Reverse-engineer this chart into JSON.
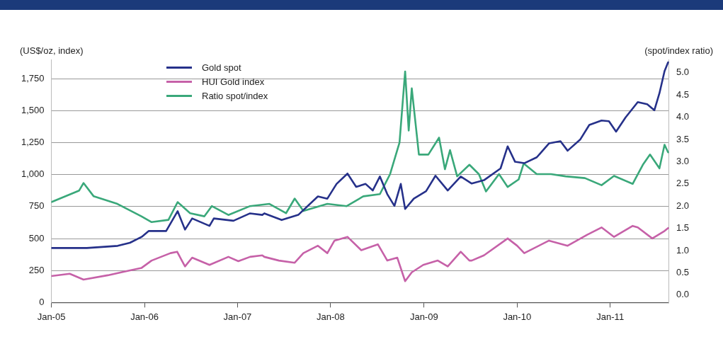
{
  "chart_data": {
    "type": "line",
    "ylabel": "(US$/oz, index)",
    "y2label": "(spot/index ratio)",
    "xlim": [
      "2005-01-01",
      "2011-08-20"
    ],
    "xticks": [
      {
        "value": "2005-01-01",
        "label": "Jan-05"
      },
      {
        "value": "2006-01-01",
        "label": "Jan-06"
      },
      {
        "value": "2007-01-01",
        "label": "Jan-07"
      },
      {
        "value": "2008-01-01",
        "label": "Jan-08"
      },
      {
        "value": "2009-01-01",
        "label": "Jan-09"
      },
      {
        "value": "2010-01-01",
        "label": "Jan-10"
      },
      {
        "value": "2011-01-01",
        "label": "Jan-11"
      }
    ],
    "ylim": [
      0,
      1900
    ],
    "yticks": [
      0,
      250,
      500,
      750,
      {
        "value": 1000,
        "label": "1,000"
      },
      {
        "value": 1250,
        "label": "1,250"
      },
      {
        "value": 1500,
        "label": "1,500"
      },
      {
        "value": 1750,
        "label": "1,750"
      }
    ],
    "y2lim": [
      -0.17,
      5.3
    ],
    "y2ticks": [
      {
        "value": 0,
        "label": "0.0"
      },
      0.5,
      {
        "value": 1,
        "label": "1.0"
      },
      1.5,
      {
        "value": 2,
        "label": "2.0"
      },
      2.5,
      {
        "value": 3,
        "label": "3.0"
      },
      3.5,
      {
        "value": 4,
        "label": "4.0"
      },
      4.5,
      {
        "value": 5,
        "label": "5.0"
      }
    ],
    "grid": "y",
    "legend": "top left",
    "marker": "none",
    "line_style": "solid",
    "series": [
      {
        "name": "Gold spot",
        "color": "#26318a",
        "x": [
          "2005-01-01",
          "2005-05-20",
          "2005-09-18",
          "2005-11-05",
          "2005-12-21",
          "2006-01-18",
          "2006-03-27",
          "2006-05-11",
          "2006-06-09",
          "2006-07-07",
          "2006-09-13",
          "2006-09-30",
          "2006-12-16",
          "2007-02-19",
          "2007-04-08",
          "2007-04-16",
          "2007-06-23",
          "2007-08-27",
          "2007-11-12",
          "2007-12-19",
          "2008-01-24",
          "2008-03-07",
          "2008-04-10",
          "2008-05-17",
          "2008-06-14",
          "2008-07-12",
          "2008-08-10",
          "2008-09-07",
          "2008-10-02",
          "2008-10-19",
          "2008-11-22",
          "2009-01-09",
          "2009-02-15",
          "2009-04-04",
          "2009-05-25",
          "2009-07-07",
          "2009-08-24",
          "2009-10-28",
          "2009-11-25",
          "2009-12-24",
          "2010-01-29",
          "2010-03-19",
          "2010-05-06",
          "2010-06-20",
          "2010-07-18",
          "2010-09-05",
          "2010-10-11",
          "2010-11-28",
          "2010-12-27",
          "2011-01-24",
          "2011-03-02",
          "2011-04-19",
          "2011-05-26",
          "2011-06-23",
          "2011-07-13",
          "2011-08-02",
          "2011-08-16"
        ],
        "values": [
          426,
          426,
          443,
          467,
          513,
          559,
          559,
          714,
          570,
          657,
          599,
          657,
          639,
          697,
          685,
          697,
          645,
          685,
          829,
          812,
          927,
          1008,
          904,
          927,
          876,
          985,
          847,
          755,
          927,
          731,
          812,
          870,
          991,
          876,
          985,
          930,
          956,
          1048,
          1221,
          1100,
          1089,
          1135,
          1244,
          1261,
          1187,
          1273,
          1388,
          1423,
          1417,
          1336,
          1446,
          1567,
          1550,
          1503,
          1636,
          1809,
          1878
        ]
      },
      {
        "name": "HUI Gold index",
        "color": "#c661a8",
        "x": [
          "2005-01-01",
          "2005-03-14",
          "2005-05-07",
          "2005-08-10",
          "2005-10-14",
          "2005-12-21",
          "2006-01-29",
          "2006-04-13",
          "2006-05-09",
          "2006-06-09",
          "2006-07-07",
          "2006-09-13",
          "2006-11-26",
          "2007-01-04",
          "2007-02-19",
          "2007-04-08",
          "2007-04-16",
          "2007-06-12",
          "2007-08-13",
          "2007-09-16",
          "2007-11-12",
          "2007-12-19",
          "2008-01-16",
          "2008-03-07",
          "2008-04-30",
          "2008-07-04",
          "2008-08-10",
          "2008-09-18",
          "2008-10-19",
          "2008-11-14",
          "2008-12-29",
          "2009-02-24",
          "2009-04-04",
          "2009-05-25",
          "2009-06-28",
          "2009-07-07",
          "2009-08-24",
          "2009-11-25",
          "2010-01-01",
          "2010-01-29",
          "2010-05-06",
          "2010-07-18",
          "2010-10-03",
          "2010-11-28",
          "2011-01-16",
          "2011-03-30",
          "2011-04-19",
          "2011-06-15",
          "2011-08-02",
          "2011-08-16"
        ],
        "values": [
          207,
          225,
          179,
          213,
          242,
          271,
          328,
          386,
          397,
          282,
          351,
          294,
          357,
          323,
          357,
          369,
          357,
          328,
          311,
          386,
          444,
          386,
          484,
          513,
          409,
          455,
          328,
          351,
          167,
          236,
          294,
          328,
          282,
          397,
          328,
          328,
          369,
          501,
          444,
          386,
          484,
          444,
          530,
          587,
          513,
          599,
          587,
          501,
          559,
          582
        ]
      },
      {
        "name": "Ratio spot/index",
        "color": "#3aa87a",
        "axis": "y2",
        "x": [
          "2005-01-01",
          "2005-04-20",
          "2005-05-07",
          "2005-06-16",
          "2005-09-17",
          "2005-12-20",
          "2006-01-29",
          "2006-04-05",
          "2006-05-11",
          "2006-06-29",
          "2006-08-24",
          "2006-09-22",
          "2006-11-26",
          "2007-02-19",
          "2007-05-06",
          "2007-07-10",
          "2007-08-13",
          "2007-09-16",
          "2007-12-19",
          "2008-03-04",
          "2008-05-08",
          "2008-07-12",
          "2008-08-21",
          "2008-09-27",
          "2008-10-19",
          "2008-11-02",
          "2008-11-14",
          "2008-12-12",
          "2009-01-18",
          "2009-03-01",
          "2009-03-24",
          "2009-04-13",
          "2009-05-11",
          "2009-06-28",
          "2009-08-04",
          "2009-09-01",
          "2009-10-22",
          "2009-11-25",
          "2010-01-07",
          "2010-01-27",
          "2010-03-19",
          "2010-05-14",
          "2010-07-10",
          "2010-09-24",
          "2010-11-28",
          "2011-01-16",
          "2011-03-30",
          "2011-05-09",
          "2011-06-06",
          "2011-07-13",
          "2011-08-02",
          "2011-08-16"
        ],
        "values": [
          2.09,
          2.35,
          2.52,
          2.22,
          2.05,
          1.77,
          1.64,
          1.69,
          2.09,
          1.84,
          1.77,
          2.0,
          1.8,
          2.0,
          2.05,
          1.84,
          2.17,
          1.89,
          2.05,
          2.0,
          2.22,
          2.27,
          2.72,
          3.43,
          5.03,
          3.7,
          4.65,
          3.16,
          3.16,
          3.54,
          2.83,
          3.26,
          2.67,
          2.93,
          2.72,
          2.33,
          2.72,
          2.43,
          2.6,
          2.96,
          2.72,
          2.72,
          2.67,
          2.63,
          2.47,
          2.68,
          2.5,
          2.93,
          3.16,
          2.85,
          3.38,
          3.21
        ]
      }
    ]
  }
}
